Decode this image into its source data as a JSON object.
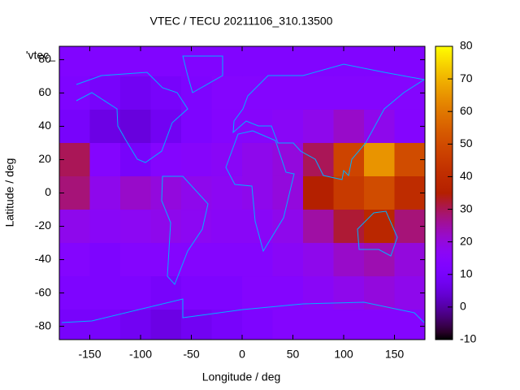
{
  "chart_data": {
    "type": "heatmap",
    "title": "VTEC / TECU 20211106_310.13500",
    "x_label": "Longitude / deg",
    "y_label": "Latitude / deg",
    "legend_label": "'vtec_",
    "x": [
      -165,
      -135,
      -105,
      -75,
      -45,
      -15,
      15,
      45,
      75,
      105,
      135,
      165
    ],
    "y": [
      80,
      60,
      40,
      20,
      0,
      -20,
      -40,
      -60,
      -80
    ],
    "z": [
      [
        13,
        13,
        13,
        13,
        13,
        13,
        13,
        13,
        13,
        13,
        13,
        13
      ],
      [
        12,
        10,
        8,
        10,
        12,
        14,
        14,
        14,
        14,
        14,
        14,
        14
      ],
      [
        10,
        6,
        5,
        8,
        12,
        14,
        15,
        16,
        18,
        22,
        18,
        14
      ],
      [
        30,
        14,
        10,
        14,
        15,
        16,
        18,
        20,
        30,
        48,
        65,
        50
      ],
      [
        28,
        18,
        22,
        20,
        18,
        17,
        18,
        20,
        35,
        45,
        50,
        40
      ],
      [
        18,
        16,
        17,
        18,
        17,
        16,
        16,
        18,
        25,
        32,
        38,
        28
      ],
      [
        14,
        12,
        14,
        14,
        14,
        14,
        14,
        16,
        18,
        22,
        24,
        20
      ],
      [
        12,
        12,
        12,
        10,
        12,
        12,
        14,
        14,
        16,
        18,
        20,
        18
      ],
      [
        10,
        10,
        8,
        6,
        8,
        10,
        12,
        14,
        14,
        14,
        14,
        14
      ]
    ],
    "x_step": 30,
    "y_step": 20,
    "xlim": [
      -180,
      180
    ],
    "xticks": [
      -150,
      -100,
      -50,
      0,
      50,
      100,
      150
    ],
    "ylim": [
      -88,
      88
    ],
    "yticks": [
      -80,
      -60,
      -40,
      -20,
      0,
      20,
      40,
      60,
      80
    ],
    "zlim": [
      -10,
      80
    ],
    "zticks": [
      -10,
      0,
      10,
      20,
      30,
      40,
      50,
      60,
      70,
      80
    ]
  }
}
